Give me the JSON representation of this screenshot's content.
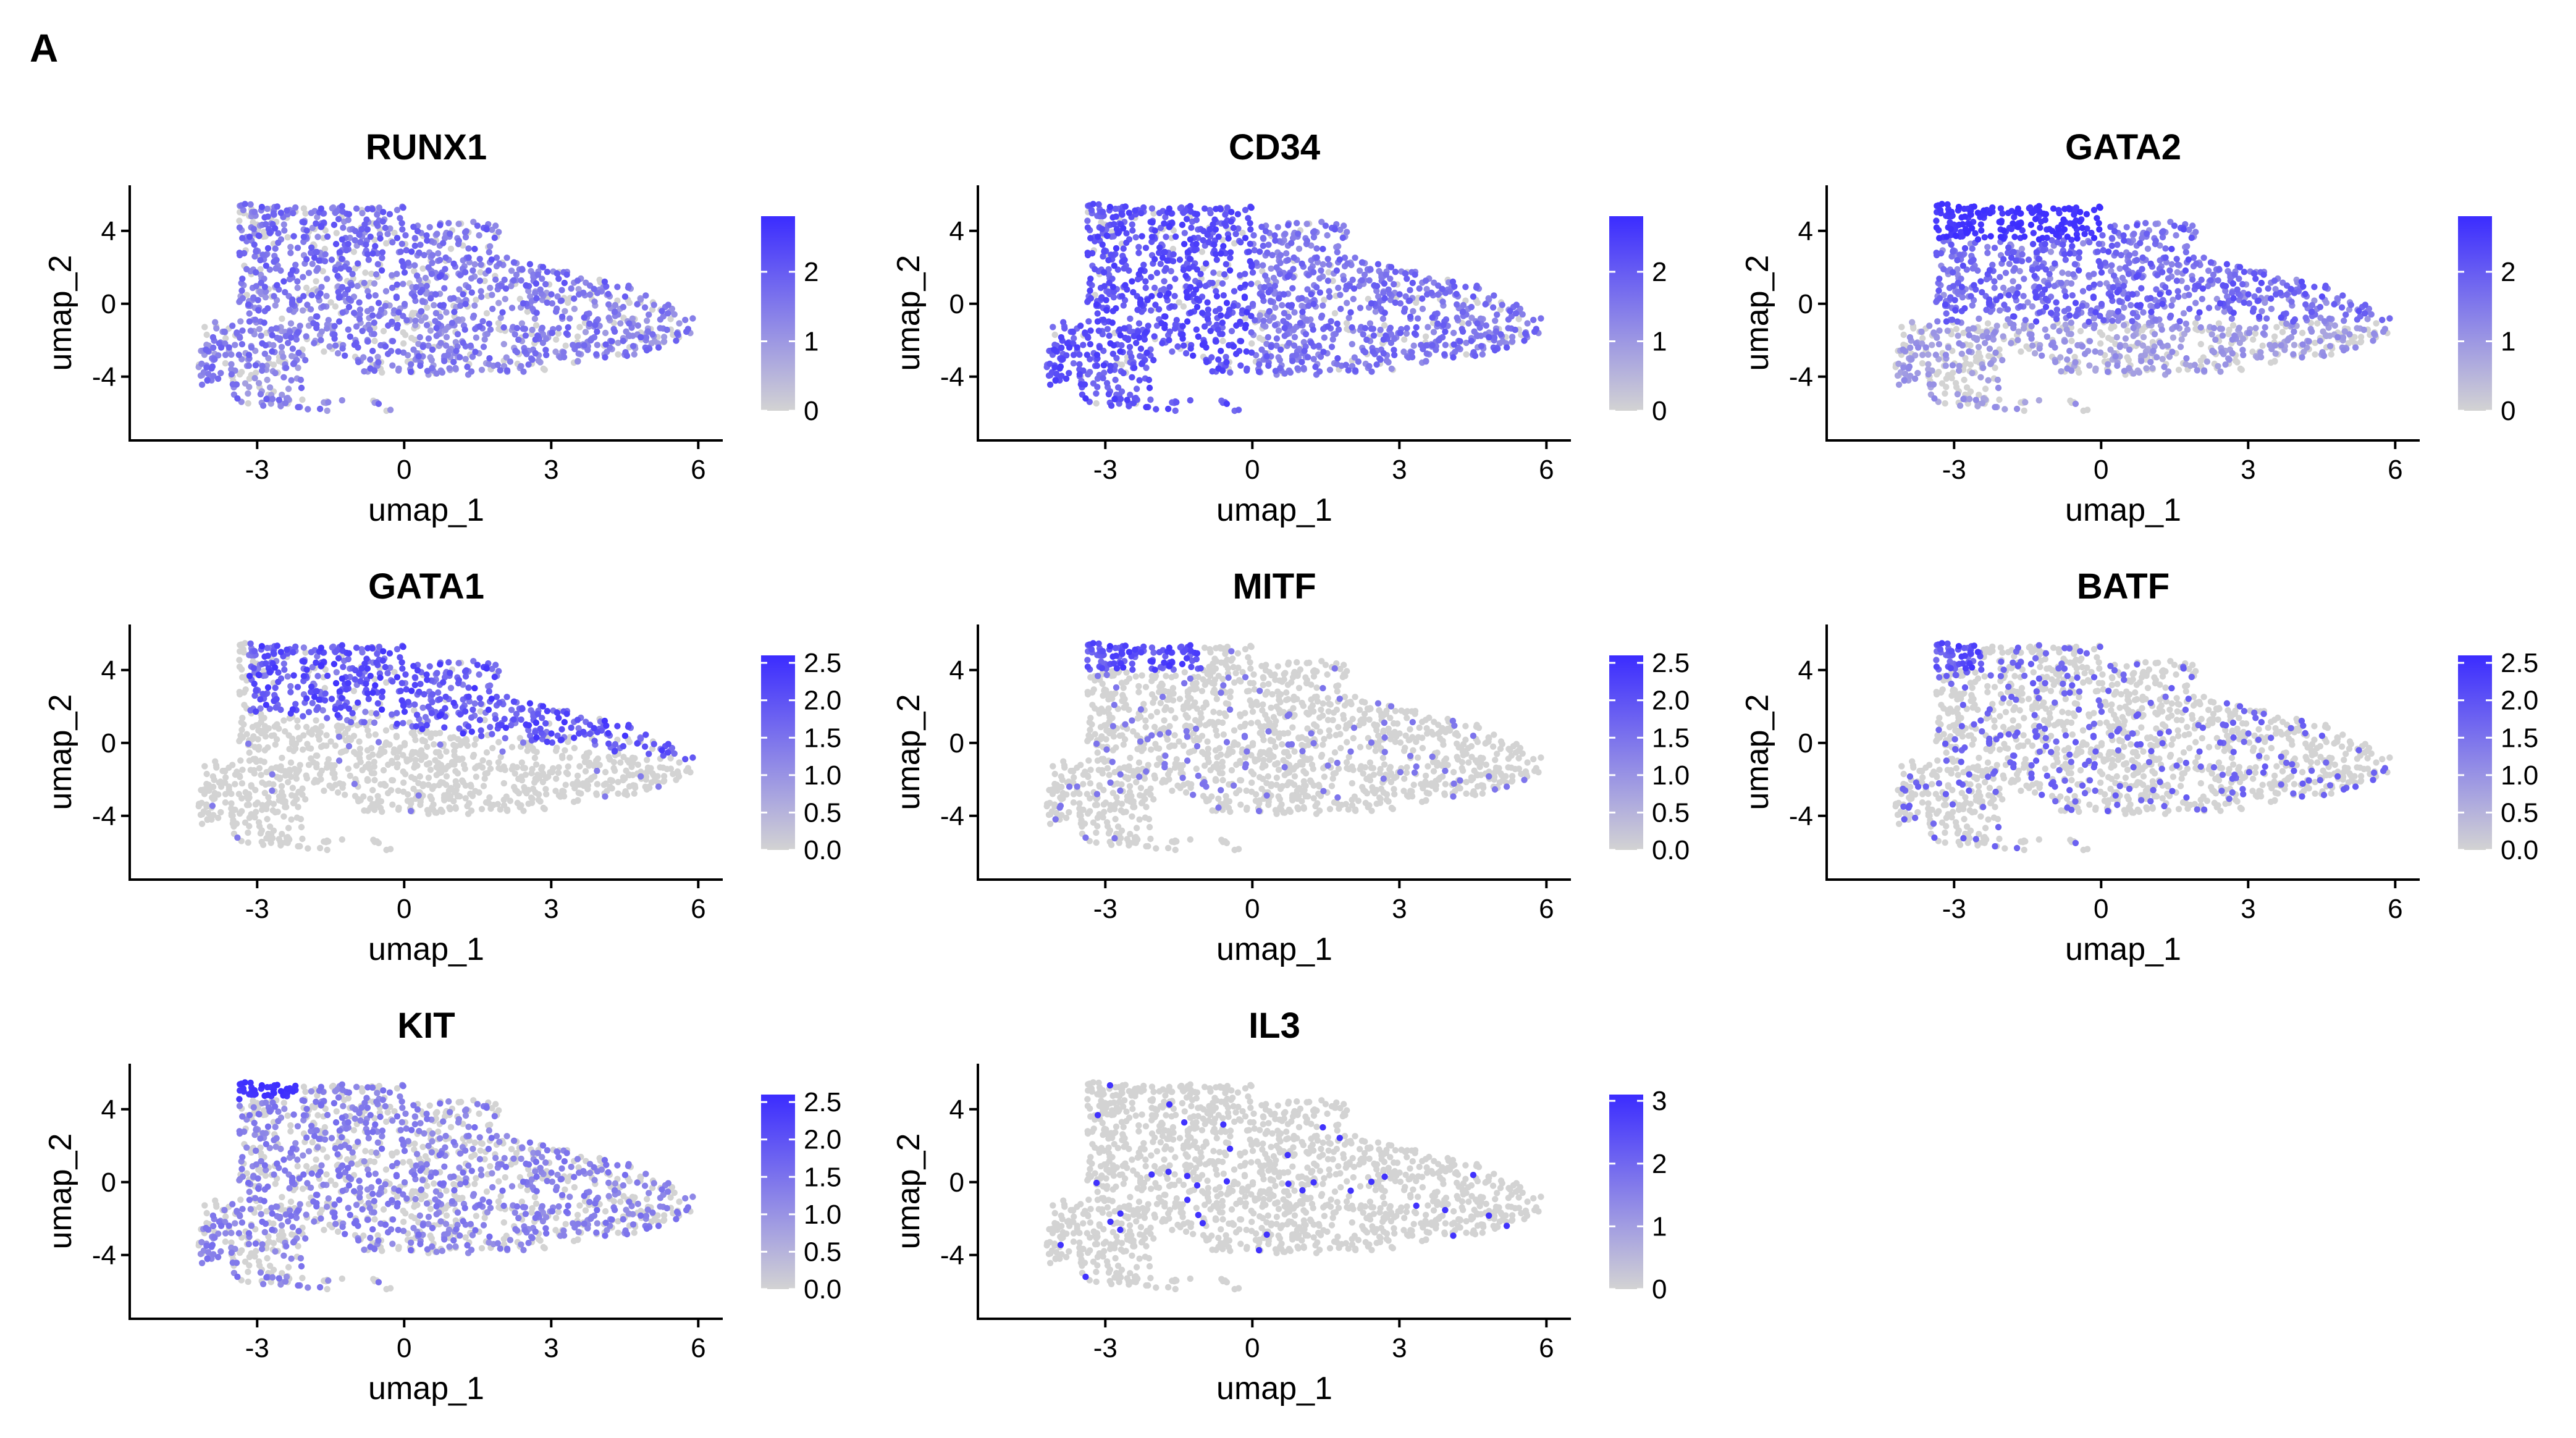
{
  "panel_label": "A",
  "chart_data": [
    {
      "type": "scatter",
      "title": "RUNX1",
      "xlabel": "umap_1",
      "ylabel": "umap_2",
      "xticks": [
        -3,
        0,
        3,
        6
      ],
      "yticks": [
        -4,
        0,
        4
      ],
      "xlim": [
        -5.6,
        6.5
      ],
      "ylim": [
        -7.5,
        6.5
      ],
      "color_scale": {
        "min": 0,
        "max": 2.8,
        "ticks": [
          "0",
          "1",
          "2"
        ],
        "low_color": "#d3d3d3",
        "high_color": "#3b2cff"
      },
      "pattern": "broad",
      "mean_expression": 0.9
    },
    {
      "type": "scatter",
      "title": "CD34",
      "xlabel": "umap_1",
      "ylabel": "umap_2",
      "xticks": [
        -3,
        0,
        3,
        6
      ],
      "yticks": [
        -4,
        0,
        4
      ],
      "xlim": [
        -5.6,
        6.5
      ],
      "ylim": [
        -7.5,
        6.5
      ],
      "color_scale": {
        "min": 0,
        "max": 2.8,
        "ticks": [
          "0",
          "1",
          "2"
        ],
        "low_color": "#d3d3d3",
        "high_color": "#3b2cff"
      },
      "pattern": "left",
      "mean_expression": 1.5
    },
    {
      "type": "scatter",
      "title": "GATA2",
      "xlabel": "umap_1",
      "ylabel": "umap_2",
      "xticks": [
        -3,
        0,
        3,
        6
      ],
      "yticks": [
        -4,
        0,
        4
      ],
      "xlim": [
        -5.6,
        6.5
      ],
      "ylim": [
        -7.5,
        6.5
      ],
      "color_scale": {
        "min": 0,
        "max": 2.8,
        "ticks": [
          "0",
          "1",
          "2"
        ],
        "low_color": "#d3d3d3",
        "high_color": "#3b2cff"
      },
      "pattern": "upper_right",
      "mean_expression": 1.3
    },
    {
      "type": "scatter",
      "title": "GATA1",
      "xlabel": "umap_1",
      "ylabel": "umap_2",
      "xticks": [
        -3,
        0,
        3,
        6
      ],
      "yticks": [
        -4,
        0,
        4
      ],
      "xlim": [
        -5.6,
        6.5
      ],
      "ylim": [
        -7.5,
        6.5
      ],
      "color_scale": {
        "min": 0,
        "max": 2.6,
        "ticks": [
          "0.0",
          "0.5",
          "1.0",
          "1.5",
          "2.0",
          "2.5"
        ],
        "low_color": "#d3d3d3",
        "high_color": "#3b2cff"
      },
      "pattern": "upper_band",
      "mean_expression": 0.5
    },
    {
      "type": "scatter",
      "title": "MITF",
      "xlabel": "umap_1",
      "ylabel": "umap_2",
      "xticks": [
        -3,
        0,
        3,
        6
      ],
      "yticks": [
        -4,
        0,
        4
      ],
      "xlim": [
        -5.6,
        6.5
      ],
      "ylim": [
        -7.5,
        6.5
      ],
      "color_scale": {
        "min": 0,
        "max": 2.6,
        "ticks": [
          "0.0",
          "0.5",
          "1.0",
          "1.5",
          "2.0",
          "2.5"
        ],
        "low_color": "#d3d3d3",
        "high_color": "#3b2cff"
      },
      "pattern": "top_left_tip",
      "mean_expression": 0.2
    },
    {
      "type": "scatter",
      "title": "BATF",
      "xlabel": "umap_1",
      "ylabel": "umap_2",
      "xticks": [
        -3,
        0,
        3,
        6
      ],
      "yticks": [
        -4,
        0,
        4
      ],
      "xlim": [
        -5.6,
        6.5
      ],
      "ylim": [
        -7.5,
        6.5
      ],
      "color_scale": {
        "min": 0,
        "max": 2.6,
        "ticks": [
          "0.0",
          "0.5",
          "1.0",
          "1.5",
          "2.0",
          "2.5"
        ],
        "low_color": "#d3d3d3",
        "high_color": "#3b2cff"
      },
      "pattern": "sparse",
      "mean_expression": 0.25
    },
    {
      "type": "scatter",
      "title": "KIT",
      "xlabel": "umap_1",
      "ylabel": "umap_2",
      "xticks": [
        -3,
        0,
        3,
        6
      ],
      "yticks": [
        -4,
        0,
        4
      ],
      "xlim": [
        -5.6,
        6.5
      ],
      "ylim": [
        -7.5,
        6.5
      ],
      "color_scale": {
        "min": 0,
        "max": 2.6,
        "ticks": [
          "0.0",
          "0.5",
          "1.0",
          "1.5",
          "2.0",
          "2.5"
        ],
        "low_color": "#d3d3d3",
        "high_color": "#3b2cff"
      },
      "pattern": "moderate",
      "mean_expression": 0.6
    },
    {
      "type": "scatter",
      "title": "IL3",
      "xlabel": "umap_1",
      "ylabel": "umap_2",
      "xticks": [
        -3,
        0,
        3,
        6
      ],
      "yticks": [
        -4,
        0,
        4
      ],
      "xlim": [
        -5.6,
        6.5
      ],
      "ylim": [
        -7.5,
        6.5
      ],
      "color_scale": {
        "min": 0,
        "max": 3.1,
        "ticks": [
          "0",
          "1",
          "2",
          "3"
        ],
        "low_color": "#d3d3d3",
        "high_color": "#3b2cff"
      },
      "pattern": "rare",
      "mean_expression": 0.03
    }
  ]
}
